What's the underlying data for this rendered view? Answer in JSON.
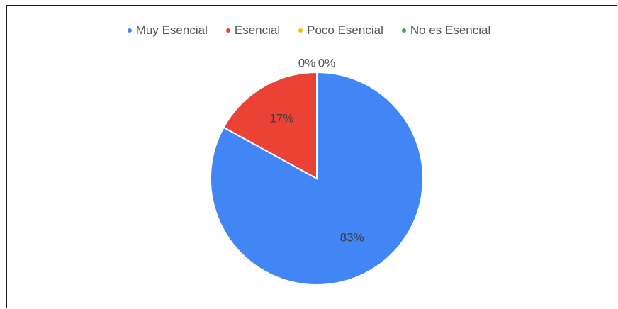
{
  "chart_data": {
    "type": "pie",
    "categories": [
      "Muy Esencial",
      "Esencial",
      "Poco Esencial",
      "No es Esencial"
    ],
    "values": [
      83,
      17,
      0,
      0
    ],
    "data_labels": [
      "83%",
      "17%",
      "0%",
      "0%"
    ],
    "colors": [
      "#4285f4",
      "#ea4335",
      "#fbbc04",
      "#34a853"
    ],
    "legend_position": "top",
    "title": ""
  }
}
